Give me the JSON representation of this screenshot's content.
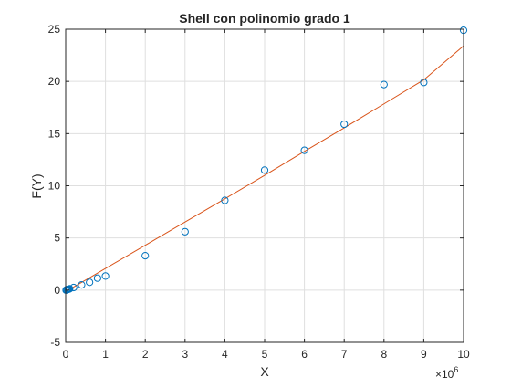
{
  "figure": {
    "background": "#ffffff"
  },
  "chart_data": {
    "type": "scatter",
    "title": "Shell con polinomio grado 1",
    "xlabel": "X",
    "ylabel": "F(Y)",
    "x_exponent_label": "×10",
    "x_exponent_power": "6",
    "xlim": [
      0,
      10
    ],
    "ylim": [
      -5,
      25
    ],
    "x_scale_factor": 1000000,
    "xticks": [
      0,
      1,
      2,
      3,
      4,
      5,
      6,
      7,
      8,
      9,
      10
    ],
    "xtick_labels": [
      "0",
      "1",
      "2",
      "3",
      "4",
      "5",
      "6",
      "7",
      "8",
      "9",
      "10"
    ],
    "yticks": [
      -5,
      0,
      5,
      10,
      15,
      20,
      25
    ],
    "ytick_labels": [
      "-5",
      "0",
      "5",
      "10",
      "15",
      "20",
      "25"
    ],
    "grid": true,
    "box": true,
    "colors": {
      "points": "#0072BD",
      "fit": "#D95319",
      "grid": "#dfdfdf",
      "axis": "#262626"
    },
    "series": [
      {
        "type": "scatter",
        "marker": "circle",
        "x": [
          0.01,
          0.02,
          0.04,
          0.06,
          0.08,
          0.1,
          0.2,
          0.4,
          0.6,
          0.8,
          1,
          2,
          3,
          4,
          5,
          6,
          7,
          8,
          9,
          10
        ],
        "y": [
          0.0,
          0.02,
          0.05,
          0.07,
          0.1,
          0.13,
          0.25,
          0.5,
          0.75,
          1.15,
          1.35,
          3.3,
          5.6,
          8.6,
          11.5,
          13.4,
          15.9,
          19.7,
          19.9,
          24.9
        ]
      },
      {
        "type": "line",
        "x": [
          0,
          1,
          2,
          3,
          4,
          5,
          6,
          7,
          8,
          9,
          10
        ],
        "y": [
          -0.15,
          2.08,
          4.3,
          6.53,
          8.75,
          11.0,
          13.3,
          15.55,
          17.85,
          20.15,
          23.4
        ]
      }
    ]
  }
}
